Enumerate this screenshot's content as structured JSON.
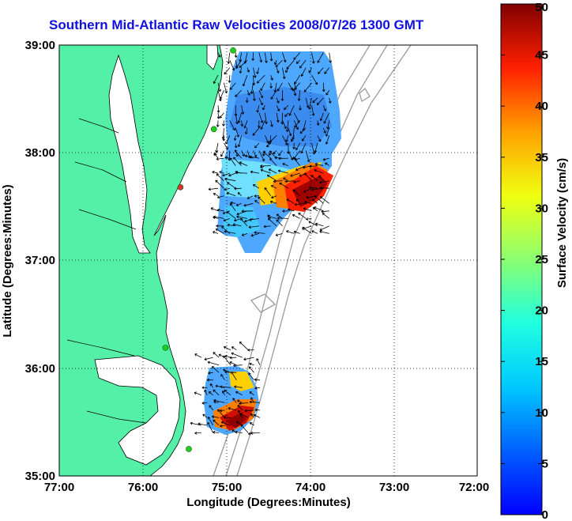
{
  "title": "Southern Mid-Atlantic Raw Velocities 2008/07/26 1300 GMT",
  "xlabel": "Longitude (Degrees:Minutes)",
  "ylabel": "Latitude (Degrees:Minutes)",
  "xticks": [
    "77:00",
    "76:00",
    "75:00",
    "74:00",
    "73:00",
    "72:00"
  ],
  "yticks": [
    "39:00",
    "38:00",
    "37:00",
    "36:00",
    "35:00"
  ],
  "colorbar": {
    "label": "Surface Velocity (cm/s)",
    "ticks": [
      "0",
      "5",
      "10",
      "15",
      "20",
      "25",
      "30",
      "35",
      "40",
      "45",
      "50"
    ],
    "min": 0,
    "max": 50,
    "colormap": "jet"
  },
  "map_extent": {
    "lon_min": -77,
    "lon_max": -72,
    "lat_min": 35,
    "lat_max": 39
  },
  "colors": {
    "title": "#1010e0",
    "land": "#55f0a8",
    "bathymetry": "#9a9a9a",
    "station": "#22cc22",
    "station_alt": "#e03030"
  },
  "stations": [
    {
      "lon": -74.92,
      "lat": 38.95,
      "color": "green"
    },
    {
      "lon": -75.15,
      "lat": 38.22,
      "color": "green"
    },
    {
      "lon": -75.55,
      "lat": 37.68,
      "color": "red"
    },
    {
      "lon": -75.73,
      "lat": 36.19,
      "color": "green"
    },
    {
      "lon": -75.45,
      "lat": 35.25,
      "color": "green"
    }
  ],
  "velocity_regions": [
    {
      "name": "northern-patch",
      "lon_range": [
        -75.1,
        -73.75
      ],
      "lat_range": [
        37.25,
        38.95
      ],
      "speed_low": 8,
      "speed_high": 50
    },
    {
      "name": "southern-patch",
      "lon_range": [
        -75.3,
        -74.55
      ],
      "lat_range": [
        35.4,
        36.22
      ],
      "speed_low": 10,
      "speed_high": 50
    }
  ]
}
